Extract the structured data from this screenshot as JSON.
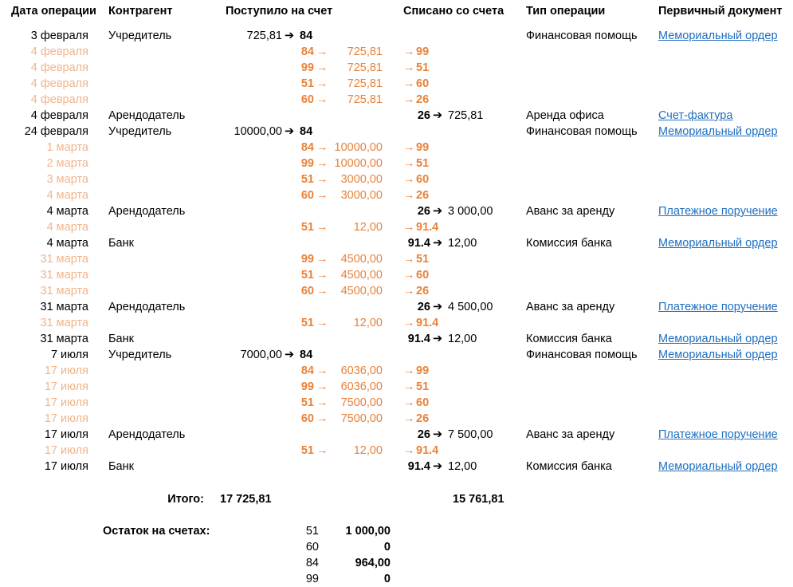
{
  "headers": {
    "date": "Дата операции",
    "counterparty": "Контрагент",
    "credit": "Поступило на счет",
    "debit": "Списано со счета",
    "type": "Тип операции",
    "document": "Первичный документ"
  },
  "arrow_bold": "➔",
  "arrow_thin": "→",
  "rows": [
    {
      "kind": "main",
      "date": "3 февраля",
      "party": "Учредитель",
      "in_amount": "725,81",
      "in_acct": "84",
      "type": "Финансовая помощь",
      "doc": "Мемориальный ордер"
    },
    {
      "kind": "sub",
      "date": "4 февраля",
      "from": "84",
      "amount": "725,81",
      "to": "99"
    },
    {
      "kind": "sub",
      "date": "4 февраля",
      "from": "99",
      "amount": "725,81",
      "to": "51"
    },
    {
      "kind": "sub",
      "date": "4 февраля",
      "from": "51",
      "amount": "725,81",
      "to": "60"
    },
    {
      "kind": "sub",
      "date": "4 февраля",
      "from": "60",
      "amount": "725,81",
      "to": "26"
    },
    {
      "kind": "main",
      "date": "4 февраля",
      "party": "Арендодатель",
      "out_acct": "26",
      "out_amount": "725,81",
      "type": "Аренда офиса",
      "doc": "Счет-фактура"
    },
    {
      "kind": "main",
      "date": "24 февраля",
      "party": "Учредитель",
      "in_amount": "10000,00",
      "in_acct": "84",
      "type": "Финансовая помощь",
      "doc": "Мемориальный ордер"
    },
    {
      "kind": "sub",
      "date": "1 марта",
      "from": "84",
      "amount": "10000,00",
      "to": "99"
    },
    {
      "kind": "sub",
      "date": "2 марта",
      "from": "99",
      "amount": "10000,00",
      "to": "51"
    },
    {
      "kind": "sub",
      "date": "3 марта",
      "from": "51",
      "amount": "3000,00",
      "to": "60"
    },
    {
      "kind": "sub",
      "date": "4 марта",
      "from": "60",
      "amount": "3000,00",
      "to": "26"
    },
    {
      "kind": "main",
      "date": "4 марта",
      "party": "Арендодатель",
      "out_acct": "26",
      "out_amount": "3 000,00",
      "type": "Аванс за аренду",
      "doc": "Платежное поручение"
    },
    {
      "kind": "sub",
      "date": "4 марта",
      "from": "51",
      "amount": "12,00",
      "to": "91.4"
    },
    {
      "kind": "main",
      "date": "4 марта",
      "party": "Банк",
      "out_acct": "91.4",
      "out_amount": "12,00",
      "type": "Комиссия банка",
      "doc": "Мемориальный ордер"
    },
    {
      "kind": "sub",
      "date": "31 марта",
      "from": "99",
      "amount": "4500,00",
      "to": "51"
    },
    {
      "kind": "sub",
      "date": "31 марта",
      "from": "51",
      "amount": "4500,00",
      "to": "60"
    },
    {
      "kind": "sub",
      "date": "31 марта",
      "from": "60",
      "amount": "4500,00",
      "to": "26"
    },
    {
      "kind": "main",
      "date": "31 марта",
      "party": "Арендодатель",
      "out_acct": "26",
      "out_amount": "4 500,00",
      "type": "Аванс за аренду",
      "doc": "Платежное поручение"
    },
    {
      "kind": "sub",
      "date": "31 марта",
      "from": "51",
      "amount": "12,00",
      "to": "91.4"
    },
    {
      "kind": "main",
      "date": "31 марта",
      "party": "Банк",
      "out_acct": "91.4",
      "out_amount": "12,00",
      "type": "Комиссия банка",
      "doc": "Мемориальный ордер"
    },
    {
      "kind": "main",
      "date": "7 июля",
      "party": "Учредитель",
      "in_amount": "7000,00",
      "in_acct": "84",
      "type": "Финансовая помощь",
      "doc": "Мемориальный ордер"
    },
    {
      "kind": "sub",
      "date": "17 июля",
      "from": "84",
      "amount": "6036,00",
      "to": "99"
    },
    {
      "kind": "sub",
      "date": "17 июля",
      "from": "99",
      "amount": "6036,00",
      "to": "51"
    },
    {
      "kind": "sub",
      "date": "17 июля",
      "from": "51",
      "amount": "7500,00",
      "to": "60"
    },
    {
      "kind": "sub",
      "date": "17 июля",
      "from": "60",
      "amount": "7500,00",
      "to": "26"
    },
    {
      "kind": "main",
      "date": "17 июля",
      "party": "Арендодатель",
      "out_acct": "26",
      "out_amount": "7 500,00",
      "type": "Аванс за аренду",
      "doc": "Платежное поручение"
    },
    {
      "kind": "sub",
      "date": "17 июля",
      "from": "51",
      "amount": "12,00",
      "to": "91.4"
    },
    {
      "kind": "main",
      "date": "17 июля",
      "party": "Банк",
      "out_acct": "91.4",
      "out_amount": "12,00",
      "type": "Комиссия банка",
      "doc": "Мемориальный ордер"
    }
  ],
  "totals": {
    "label": "Итого:",
    "credit": "17 725,81",
    "debit": "15 761,81"
  },
  "balance": {
    "label": "Остаток на счетах:",
    "accounts": [
      {
        "acct": "51",
        "value": "1 000,00"
      },
      {
        "acct": "60",
        "value": "0"
      },
      {
        "acct": "84",
        "value": "964,00"
      },
      {
        "acct": "99",
        "value": "0"
      }
    ]
  }
}
